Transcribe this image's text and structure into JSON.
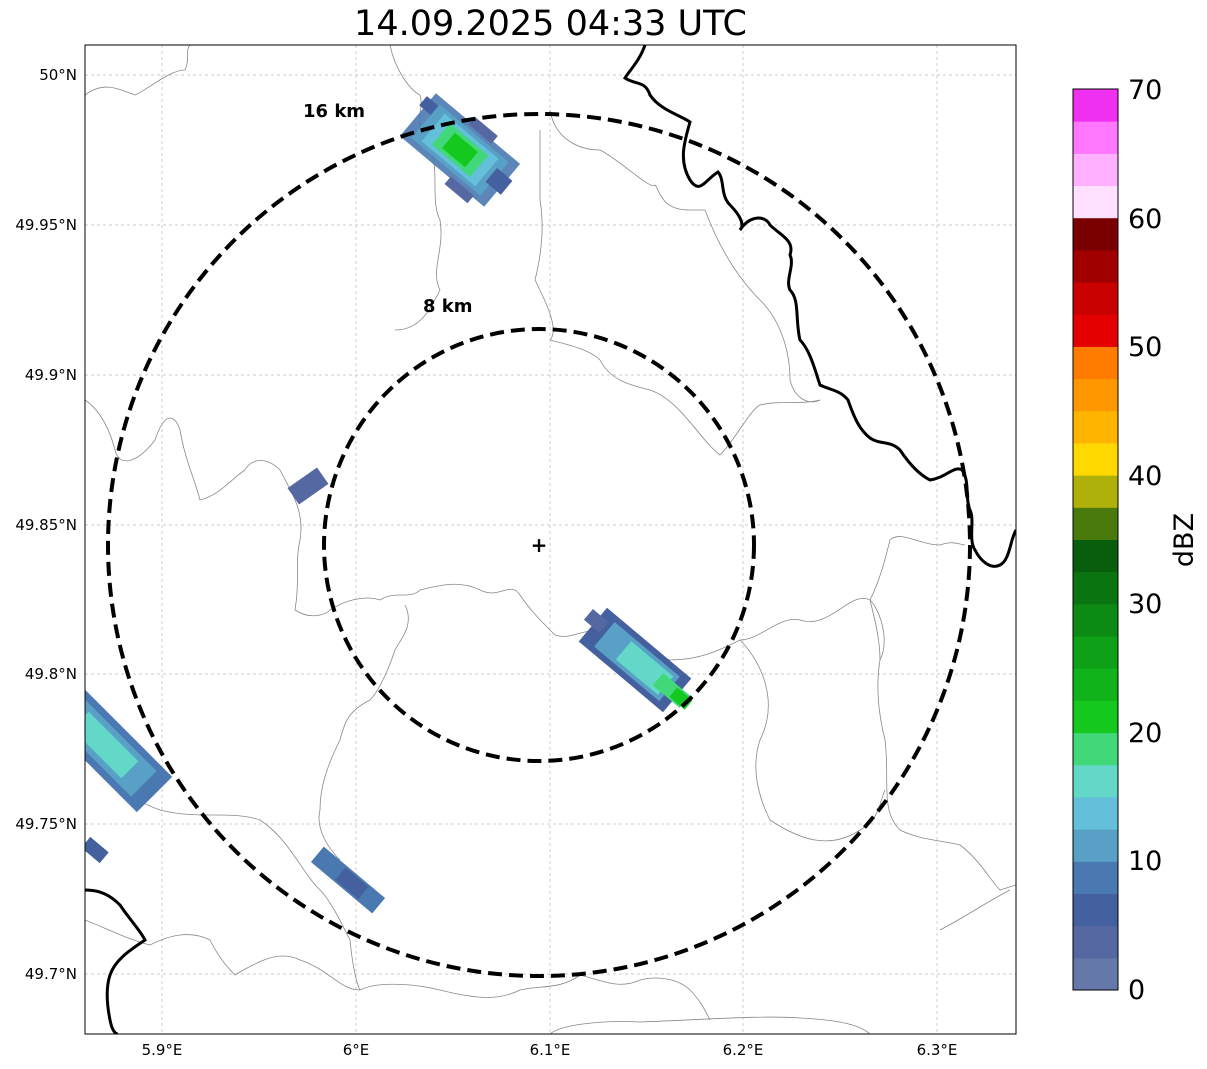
{
  "title": "14.09.2025 04:33 UTC",
  "map": {
    "lon_ticks": [
      "5.9°E",
      "6°E",
      "6.1°E",
      "6.2°E",
      "6.3°E"
    ],
    "lat_ticks": [
      "49.7°N",
      "49.75°N",
      "49.8°N",
      "49.85°N",
      "49.9°N",
      "49.95°N",
      "50°N"
    ],
    "ring_labels": [
      "8 km",
      "16 km"
    ],
    "radar_site": "+"
  },
  "colorbar": {
    "label": "dBZ",
    "ticks": [
      "0",
      "10",
      "20",
      "30",
      "40",
      "50",
      "60",
      "70"
    ],
    "colors": [
      "#6478aa",
      "#5668a2",
      "#44609e",
      "#4a78b0",
      "#58a0c6",
      "#64c0da",
      "#64d8c8",
      "#40d878",
      "#14c81e",
      "#10b41a",
      "#0ea016",
      "#0c8a14",
      "#0a7410",
      "#085e0c",
      "#4a7a0c",
      "#b0b00a",
      "#ffd800",
      "#ffb400",
      "#ff9800",
      "#ff7c00",
      "#e40000",
      "#c80000",
      "#a00000",
      "#780000",
      "#ffe0ff",
      "#ffb0ff",
      "#ff78ff",
      "#f030f0"
    ]
  }
}
